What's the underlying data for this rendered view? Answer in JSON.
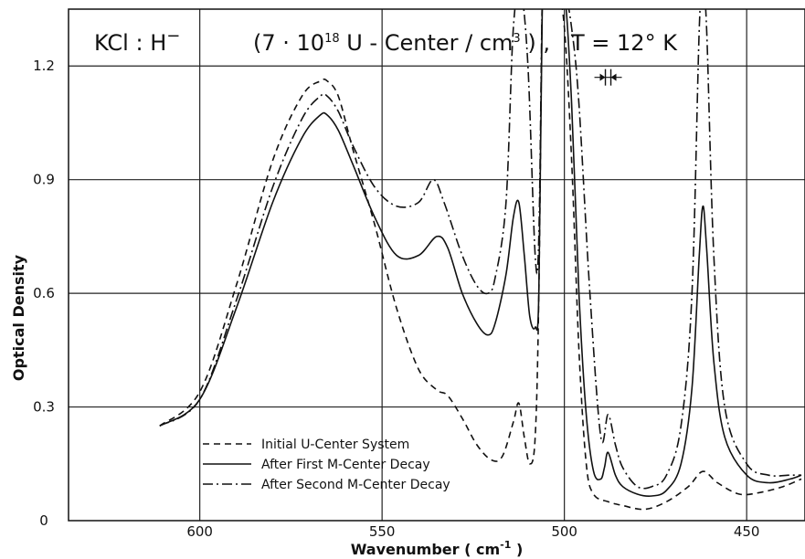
{
  "chart_data": {
    "type": "line",
    "title_parts": {
      "main": "KCl : H",
      "sup_minus": "−",
      "conc_pre": "(7 · 10",
      "conc_exp": "18",
      "conc_mid": " U - Center / cm",
      "conc_cube": "3",
      "conc_post": " ) ,",
      "temp": "T = 12° K"
    },
    "xlabel": "Wavenumber ( cm",
    "xlabel_exp": "-1",
    "xlabel_close": " )",
    "ylabel": "Optical Density",
    "x_reversed": true,
    "xlim": [
      636,
      434
    ],
    "ylim": [
      0,
      1.35
    ],
    "xticks": [
      600,
      550,
      500,
      450
    ],
    "xtick_labels": [
      "600",
      "550",
      "500",
      "450"
    ],
    "yticks": [
      0,
      0.3,
      0.6,
      0.9,
      1.2
    ],
    "ytick_labels": [
      "0",
      "0.3",
      "0.6",
      "0.9",
      "1.2"
    ],
    "grid": true,
    "legend_position": "bottom-left",
    "resolution_marker_x": 488,
    "resolution_marker_y": 1.17,
    "series": [
      {
        "name": "Initial U-Center System",
        "style": "dashed",
        "x": [
          611,
          600,
          590,
          580,
          572,
          567,
          565,
          562,
          558,
          552,
          546,
          540,
          535,
          532,
          528,
          524,
          520,
          517,
          514,
          512.5,
          511,
          509.5,
          508,
          507,
          506,
          505,
          502,
          500,
          498,
          496,
          494,
          492,
          488,
          484,
          478,
          472,
          466,
          462,
          458,
          452,
          446,
          440,
          435
        ],
        "y": [
          0.25,
          0.34,
          0.62,
          0.95,
          1.12,
          1.16,
          1.16,
          1.12,
          0.98,
          0.78,
          0.56,
          0.4,
          0.345,
          0.33,
          0.27,
          0.2,
          0.16,
          0.17,
          0.26,
          0.31,
          0.22,
          0.15,
          0.22,
          0.6,
          1.4,
          1.4,
          1.4,
          1.3,
          0.95,
          0.45,
          0.15,
          0.07,
          0.05,
          0.04,
          0.03,
          0.05,
          0.09,
          0.13,
          0.1,
          0.07,
          0.075,
          0.09,
          0.11
        ]
      },
      {
        "name": "After First M-Center Decay",
        "style": "solid",
        "x": [
          611,
          600,
          590,
          580,
          572,
          567,
          565,
          562,
          558,
          552,
          546,
          540,
          535,
          532,
          528,
          524,
          521,
          519,
          516,
          514,
          512.5,
          511,
          509.5,
          508,
          507,
          506,
          505,
          502,
          500,
          498,
          496,
          494,
          492,
          490,
          489,
          488,
          486,
          484,
          480,
          476,
          472,
          468,
          465,
          463,
          462,
          461,
          459,
          456,
          450,
          444,
          438,
          435
        ],
        "y": [
          0.25,
          0.32,
          0.56,
          0.84,
          1.01,
          1.07,
          1.07,
          1.03,
          0.94,
          0.8,
          0.7,
          0.7,
          0.75,
          0.72,
          0.6,
          0.52,
          0.49,
          0.52,
          0.65,
          0.8,
          0.84,
          0.7,
          0.54,
          0.51,
          0.6,
          1.4,
          1.4,
          1.4,
          1.4,
          1.1,
          0.6,
          0.28,
          0.13,
          0.11,
          0.14,
          0.18,
          0.12,
          0.09,
          0.07,
          0.065,
          0.08,
          0.15,
          0.35,
          0.7,
          0.83,
          0.72,
          0.42,
          0.22,
          0.12,
          0.1,
          0.11,
          0.12
        ]
      },
      {
        "name": "After Second M-Center Decay",
        "style": "dashdot",
        "x": [
          611,
          600,
          590,
          580,
          572,
          567,
          565,
          562,
          558,
          552,
          546,
          540,
          536,
          533,
          528,
          524,
          521,
          519,
          516,
          514,
          512,
          510,
          508,
          507,
          506,
          505,
          502,
          500,
          498,
          496,
          493,
          490,
          488,
          486,
          484,
          480,
          476,
          472,
          468,
          465,
          463,
          462,
          461,
          459,
          456,
          450,
          444,
          438,
          435
        ],
        "y": [
          0.25,
          0.32,
          0.58,
          0.88,
          1.06,
          1.12,
          1.12,
          1.08,
          0.99,
          0.88,
          0.83,
          0.84,
          0.9,
          0.84,
          0.7,
          0.62,
          0.6,
          0.64,
          0.84,
          1.3,
          1.4,
          1.2,
          0.7,
          0.75,
          1.4,
          1.4,
          1.4,
          1.4,
          1.3,
          1.1,
          0.6,
          0.22,
          0.28,
          0.2,
          0.14,
          0.09,
          0.09,
          0.12,
          0.25,
          0.6,
          1.3,
          1.4,
          1.3,
          0.7,
          0.3,
          0.15,
          0.12,
          0.12,
          0.12
        ]
      }
    ]
  }
}
